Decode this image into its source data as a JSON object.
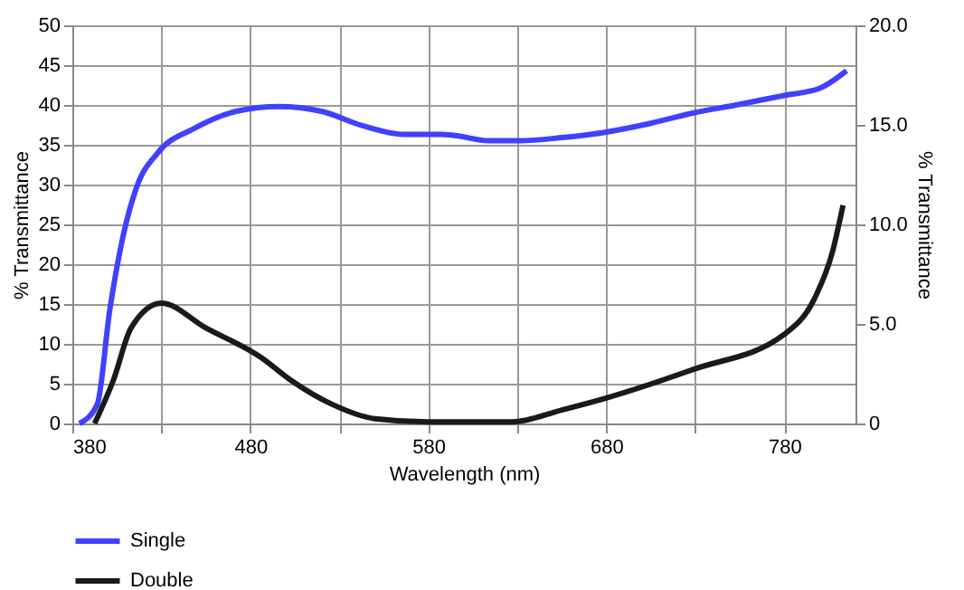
{
  "chart_data": {
    "type": "line",
    "xlabel": "Wavelength (nm)",
    "ylabel": "% Transmittance",
    "y2label": "% Transmittance",
    "x": [
      384,
      394,
      401,
      408,
      416,
      428,
      448,
      472,
      496,
      520,
      543,
      567,
      587,
      594,
      614,
      631,
      655,
      680,
      705,
      729,
      753,
      780,
      800,
      815
    ],
    "series": [
      {
        "name": "Single",
        "color": "#4040ff",
        "values": [
          0,
          2.4,
          14.2,
          23,
          29.6,
          34,
          37,
          39.2,
          39.8,
          39.2,
          37.4,
          36.3,
          36.3,
          36.2,
          35.5,
          35.5,
          35.9,
          36.6,
          37.7,
          39,
          40,
          41.2,
          42.1,
          44.3
        ]
      },
      {
        "name": "Double",
        "color": "#1a1a1a",
        "x": [
          392.5,
          403,
          413,
          430,
          455,
          486,
          503,
          526,
          550,
          580,
          627,
          655,
          680,
          729,
          780,
          797,
          807,
          813
        ],
        "values": [
          0,
          5.4,
          12,
          15.1,
          12,
          8.3,
          5.4,
          2.4,
          0.6,
          0.2,
          0.2,
          1.7,
          3.2,
          6.8,
          11.2,
          15.7,
          21.5,
          27.4
        ]
      }
    ],
    "xlim": [
      380,
      820
    ],
    "xticks": [
      380,
      {
        "value": 430,
        "label": null
      },
      480,
      {
        "value": 530,
        "label": null
      },
      580,
      {
        "value": 630,
        "label": null
      },
      680,
      {
        "value": 730,
        "label": null
      },
      780
    ],
    "ylim": [
      0,
      50
    ],
    "yticks": [
      0,
      5,
      10,
      15,
      20,
      25,
      30,
      35,
      40,
      45,
      50
    ],
    "y2lim": [
      0,
      20
    ],
    "y2ticks": [
      0,
      {
        "value": 5,
        "label": "5.0"
      },
      {
        "value": 10,
        "label": "10.0"
      },
      {
        "value": 15,
        "label": "15.0"
      },
      {
        "value": 20,
        "label": "20.0"
      }
    ],
    "grid": true,
    "legend": "bottom left",
    "marker": "none",
    "line_style": "solid"
  }
}
